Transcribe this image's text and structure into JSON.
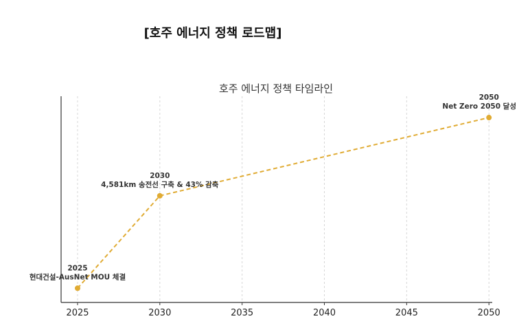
{
  "heading": "[호주 에너지 정책 로드맵]",
  "colors": {
    "series": "#E0AB33",
    "grid": "#d6d6d6",
    "axis": "#333333"
  },
  "chart_data": {
    "type": "line",
    "title": "호주 에너지 정책 타임라인",
    "xlabel": "",
    "ylabel": "",
    "xlim": [
      2024,
      2050.2
    ],
    "ylim": [
      0.3,
      3.2
    ],
    "xticks": [
      2025,
      2030,
      2035,
      2040,
      2045,
      2050
    ],
    "grid": "vertical dashed",
    "line_style": "dashed",
    "points": [
      {
        "x": 2025,
        "y": 0.5,
        "year_label": "2025",
        "event": "현대건설-AusNet MOU 체결"
      },
      {
        "x": 2030,
        "y": 1.8,
        "year_label": "2030",
        "event": "4,581km 송전선 구축 & 43% 감축"
      },
      {
        "x": 2050,
        "y": 2.9,
        "year_label": "2050",
        "event": "Net Zero 2050 달성"
      }
    ]
  }
}
